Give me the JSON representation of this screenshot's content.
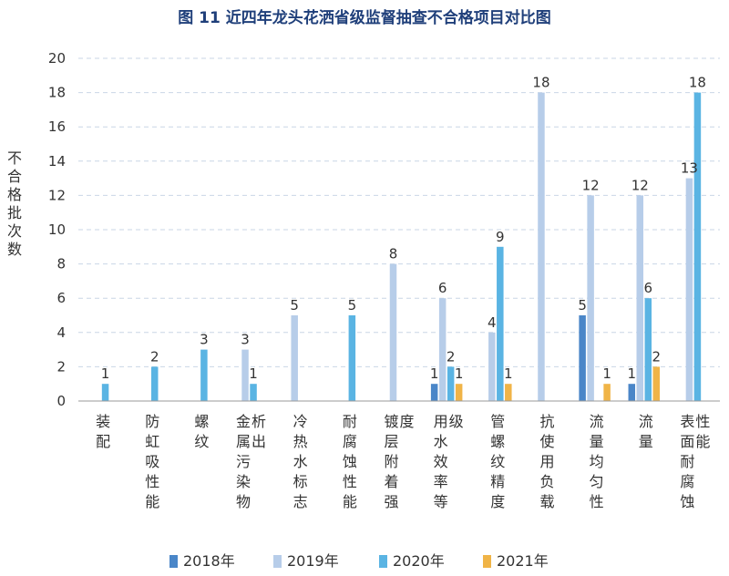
{
  "chart_data": {
    "type": "bar",
    "title": "图 11   近四年龙头花洒省级监督抽查不合格项目对比图",
    "ylabel": "不合格批次数",
    "xlabel": "",
    "ylim": [
      0,
      20
    ],
    "yticks": [
      0,
      2,
      4,
      6,
      8,
      10,
      12,
      14,
      16,
      18,
      20
    ],
    "grid": true,
    "legend": "bottom",
    "categories": [
      "装配",
      "防虹吸性能",
      "螺纹",
      "金属污染物析出",
      "冷热水标志",
      "耐腐蚀性能",
      "镀层附着强度",
      "用水效率等级",
      "管螺纹精度",
      "抗使用负载",
      "流量均匀性",
      "流量",
      "表面耐腐蚀性能"
    ],
    "series": [
      {
        "name": "2018年",
        "color": "#4a86c8",
        "values": [
          null,
          null,
          null,
          null,
          null,
          null,
          null,
          1,
          null,
          null,
          5,
          1,
          null
        ]
      },
      {
        "name": "2019年",
        "color": "#b7cde9",
        "values": [
          null,
          null,
          null,
          3,
          5,
          null,
          8,
          6,
          4,
          18,
          12,
          12,
          13
        ]
      },
      {
        "name": "2020年",
        "color": "#5ab4e3",
        "values": [
          1,
          2,
          3,
          1,
          null,
          5,
          null,
          2,
          9,
          null,
          null,
          6,
          18
        ]
      },
      {
        "name": "2021年",
        "color": "#f0b447",
        "values": [
          null,
          null,
          null,
          null,
          null,
          null,
          null,
          1,
          1,
          null,
          1,
          2,
          null
        ]
      }
    ]
  }
}
